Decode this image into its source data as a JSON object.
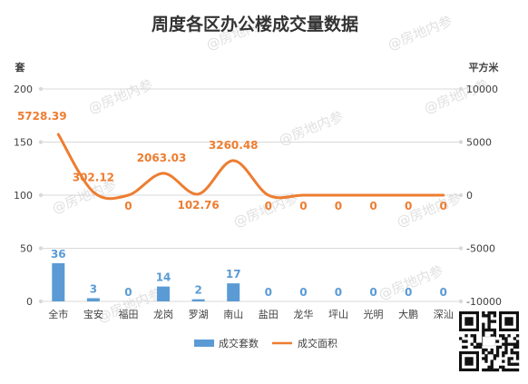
{
  "chart_data": {
    "type": "bar",
    "title": "周度各区办公楼成交量数据",
    "categories": [
      "全市",
      "宝安",
      "福田",
      "龙岗",
      "罗湖",
      "南山",
      "盐田",
      "龙华",
      "坪山",
      "光明",
      "大鹏",
      "深汕"
    ],
    "series": [
      {
        "name": "成交套数",
        "type": "bar",
        "axis": "left",
        "color": "#5b9bd5",
        "values": [
          36,
          3,
          0,
          14,
          2,
          17,
          0,
          0,
          0,
          0,
          0,
          0
        ],
        "labels": [
          "36",
          "3",
          "0",
          "14",
          "2",
          "17",
          "0",
          "0",
          "0",
          "0",
          "0",
          "0"
        ]
      },
      {
        "name": "成交面积",
        "type": "line",
        "axis": "right",
        "smooth": true,
        "color": "#ed7d31",
        "values": [
          5728.39,
          302.12,
          0,
          2063.03,
          102.76,
          3260.48,
          0,
          0,
          0,
          0,
          0,
          0
        ],
        "labels": [
          "5728.39",
          "302.12",
          "0",
          "2063.03",
          "102.76",
          "3260.48",
          "0",
          "0",
          "0",
          "0",
          "0",
          "0"
        ]
      }
    ],
    "y_left": {
      "label": "套",
      "range": [
        0,
        200
      ],
      "ticks": [
        "0",
        "50",
        "100",
        "150",
        "200"
      ]
    },
    "y_right": {
      "label": "平方米",
      "range": [
        -10000,
        10000
      ],
      "ticks": [
        "-10000",
        "-5000",
        "0",
        "5000",
        "10000"
      ]
    },
    "grid": true,
    "legend_position": "bottom"
  },
  "watermark": {
    "text": "@房地内参"
  }
}
